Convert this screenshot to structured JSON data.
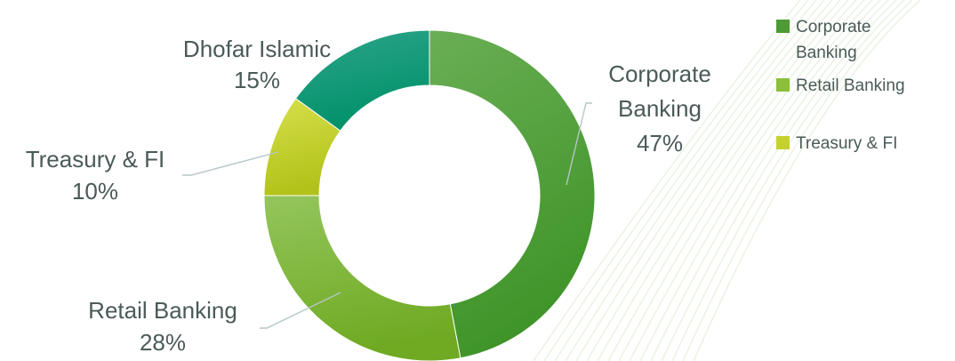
{
  "chart_data": {
    "type": "pie",
    "variant": "donut",
    "categories": [
      "Corporate Banking",
      "Retail Banking",
      "Treasury & FI",
      "Dhofar Islamic"
    ],
    "values": [
      47,
      28,
      10,
      15
    ],
    "unit": "%",
    "data_labels": [
      {
        "name_lines": [
          "Corporate",
          "Banking"
        ],
        "value_text": "47%"
      },
      {
        "name_lines": [
          "Retail Banking"
        ],
        "value_text": "28%"
      },
      {
        "name_lines": [
          "Treasury & FI"
        ],
        "value_text": "10%"
      },
      {
        "name_lines": [
          "Dhofar Islamic"
        ],
        "value_text": "15%"
      }
    ],
    "colors": [
      "#57a33a",
      "#7fb52e",
      "#c3cf2c",
      "#1a9a77"
    ],
    "legend": {
      "placement": "top-right",
      "entries": [
        {
          "lines": [
            "Corporate",
            "Banking"
          ],
          "color": "#4d9a37"
        },
        {
          "lines": [
            "Retail Banking"
          ],
          "color": "#8cbf3a"
        },
        {
          "lines": [
            "Treasury & FI"
          ],
          "color": "#c5d22e"
        }
      ]
    }
  }
}
